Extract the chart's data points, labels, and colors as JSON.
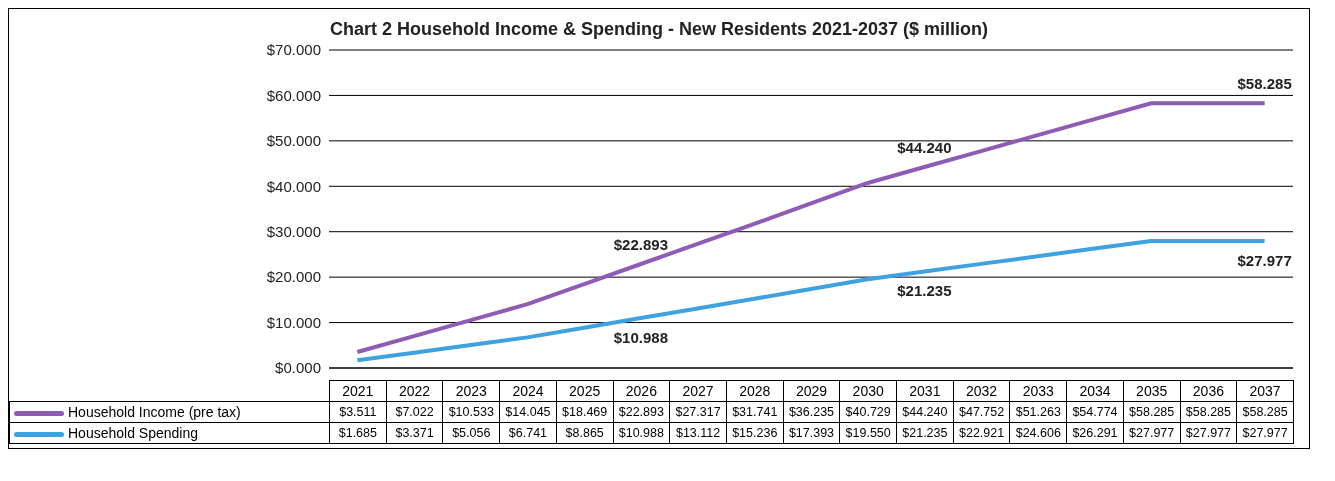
{
  "chart_data": {
    "type": "line",
    "title": "Chart 2 Household Income & Spending - New Residents 2021-2037 ($ million)",
    "categories": [
      "2021",
      "2022",
      "2023",
      "2024",
      "2025",
      "2026",
      "2027",
      "2028",
      "2029",
      "2030",
      "2031",
      "2032",
      "2033",
      "2034",
      "2035",
      "2036",
      "2037"
    ],
    "series": [
      {
        "name": "Household  Income (pre tax)",
        "color": "#8e5bb5",
        "values": [
          3.511,
          7.022,
          10.533,
          14.045,
          18.469,
          22.893,
          27.317,
          31.741,
          36.235,
          40.729,
          44.24,
          47.752,
          51.263,
          54.774,
          58.285,
          58.285,
          58.285
        ],
        "value_labels": [
          "$3.511",
          "$7.022",
          "$10.533",
          "$14.045",
          "$18.469",
          "$22.893",
          "$27.317",
          "$31.741",
          "$36.235",
          "$40.729",
          "$44.240",
          "$47.752",
          "$51.263",
          "$54.774",
          "$58.285",
          "$58.285",
          "$58.285"
        ]
      },
      {
        "name": "Household Spending",
        "color": "#3fa2e0",
        "values": [
          1.685,
          3.371,
          5.056,
          6.741,
          8.865,
          10.988,
          13.112,
          15.236,
          17.393,
          19.55,
          21.235,
          22.921,
          24.606,
          26.291,
          27.977,
          27.977,
          27.977
        ],
        "value_labels": [
          "$1.685",
          "$3.371",
          "$5.056",
          "$6.741",
          "$8.865",
          "$10.988",
          "$13.112",
          "$15.236",
          "$17.393",
          "$19.550",
          "$21.235",
          "$22.921",
          "$24.606",
          "$26.291",
          "$27.977",
          "$27.977",
          "$27.977"
        ]
      }
    ],
    "ylim": [
      0,
      70
    ],
    "yticks": [
      {
        "value": 0,
        "label": "$0.000"
      },
      {
        "value": 10,
        "label": "$10.000"
      },
      {
        "value": 20,
        "label": "$20.000"
      },
      {
        "value": 30,
        "label": "$30.000"
      },
      {
        "value": 40,
        "label": "$40.000"
      },
      {
        "value": 50,
        "label": "$50.000"
      },
      {
        "value": 60,
        "label": "$60.000"
      },
      {
        "value": 70,
        "label": "$70.000"
      }
    ],
    "grid": "y",
    "legend": "bottom",
    "marker": "none",
    "annotations": [
      {
        "text": "$22.893",
        "x": "2026",
        "y": 22.893
      },
      {
        "text": "$44.240",
        "x": "2031",
        "y": 44.24
      },
      {
        "text": "$58.285",
        "x": "2037",
        "y": 58.285
      },
      {
        "text": "$10.988",
        "x": "2026",
        "y": 10.988
      },
      {
        "text": "$21.235",
        "x": "2031",
        "y": 21.235
      },
      {
        "text": "$27.977",
        "x": "2037",
        "y": 27.977
      }
    ]
  }
}
